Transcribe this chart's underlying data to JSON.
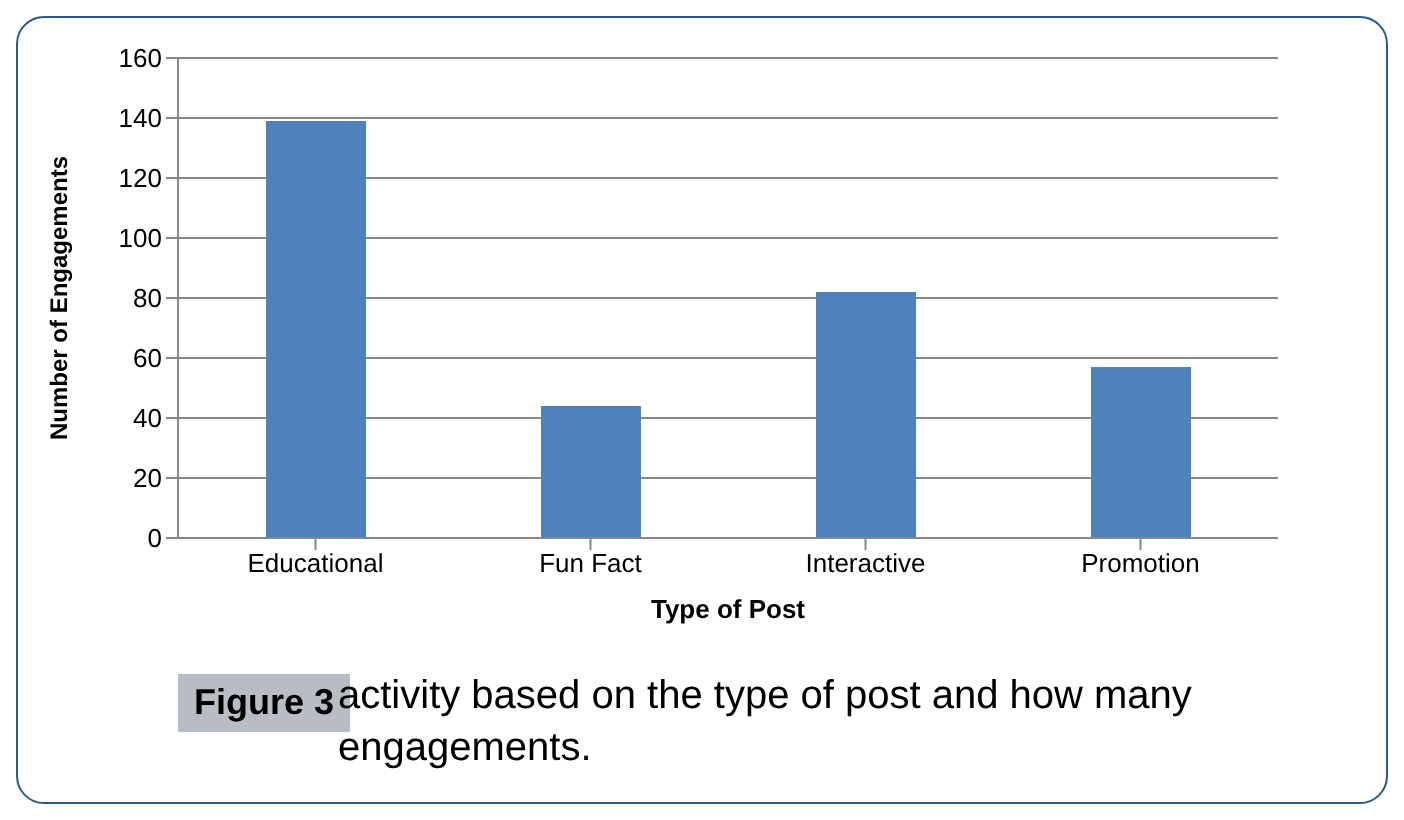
{
  "chart_data": {
    "type": "bar",
    "xlabel": "Type of Post",
    "ylabel": "Number of Engagements",
    "categories": [
      "Educational",
      "Fun Fact",
      "Interactive",
      "Promotion"
    ],
    "values": [
      139,
      44,
      82,
      57
    ],
    "color": "#4f81bd",
    "ylim": [
      0,
      160
    ],
    "yticks": [
      0,
      20,
      40,
      60,
      80,
      100,
      120,
      140,
      160
    ],
    "grid": "y",
    "annotations": [
      "Figure 3",
      "activity based on the type of post and how many engagements."
    ]
  }
}
